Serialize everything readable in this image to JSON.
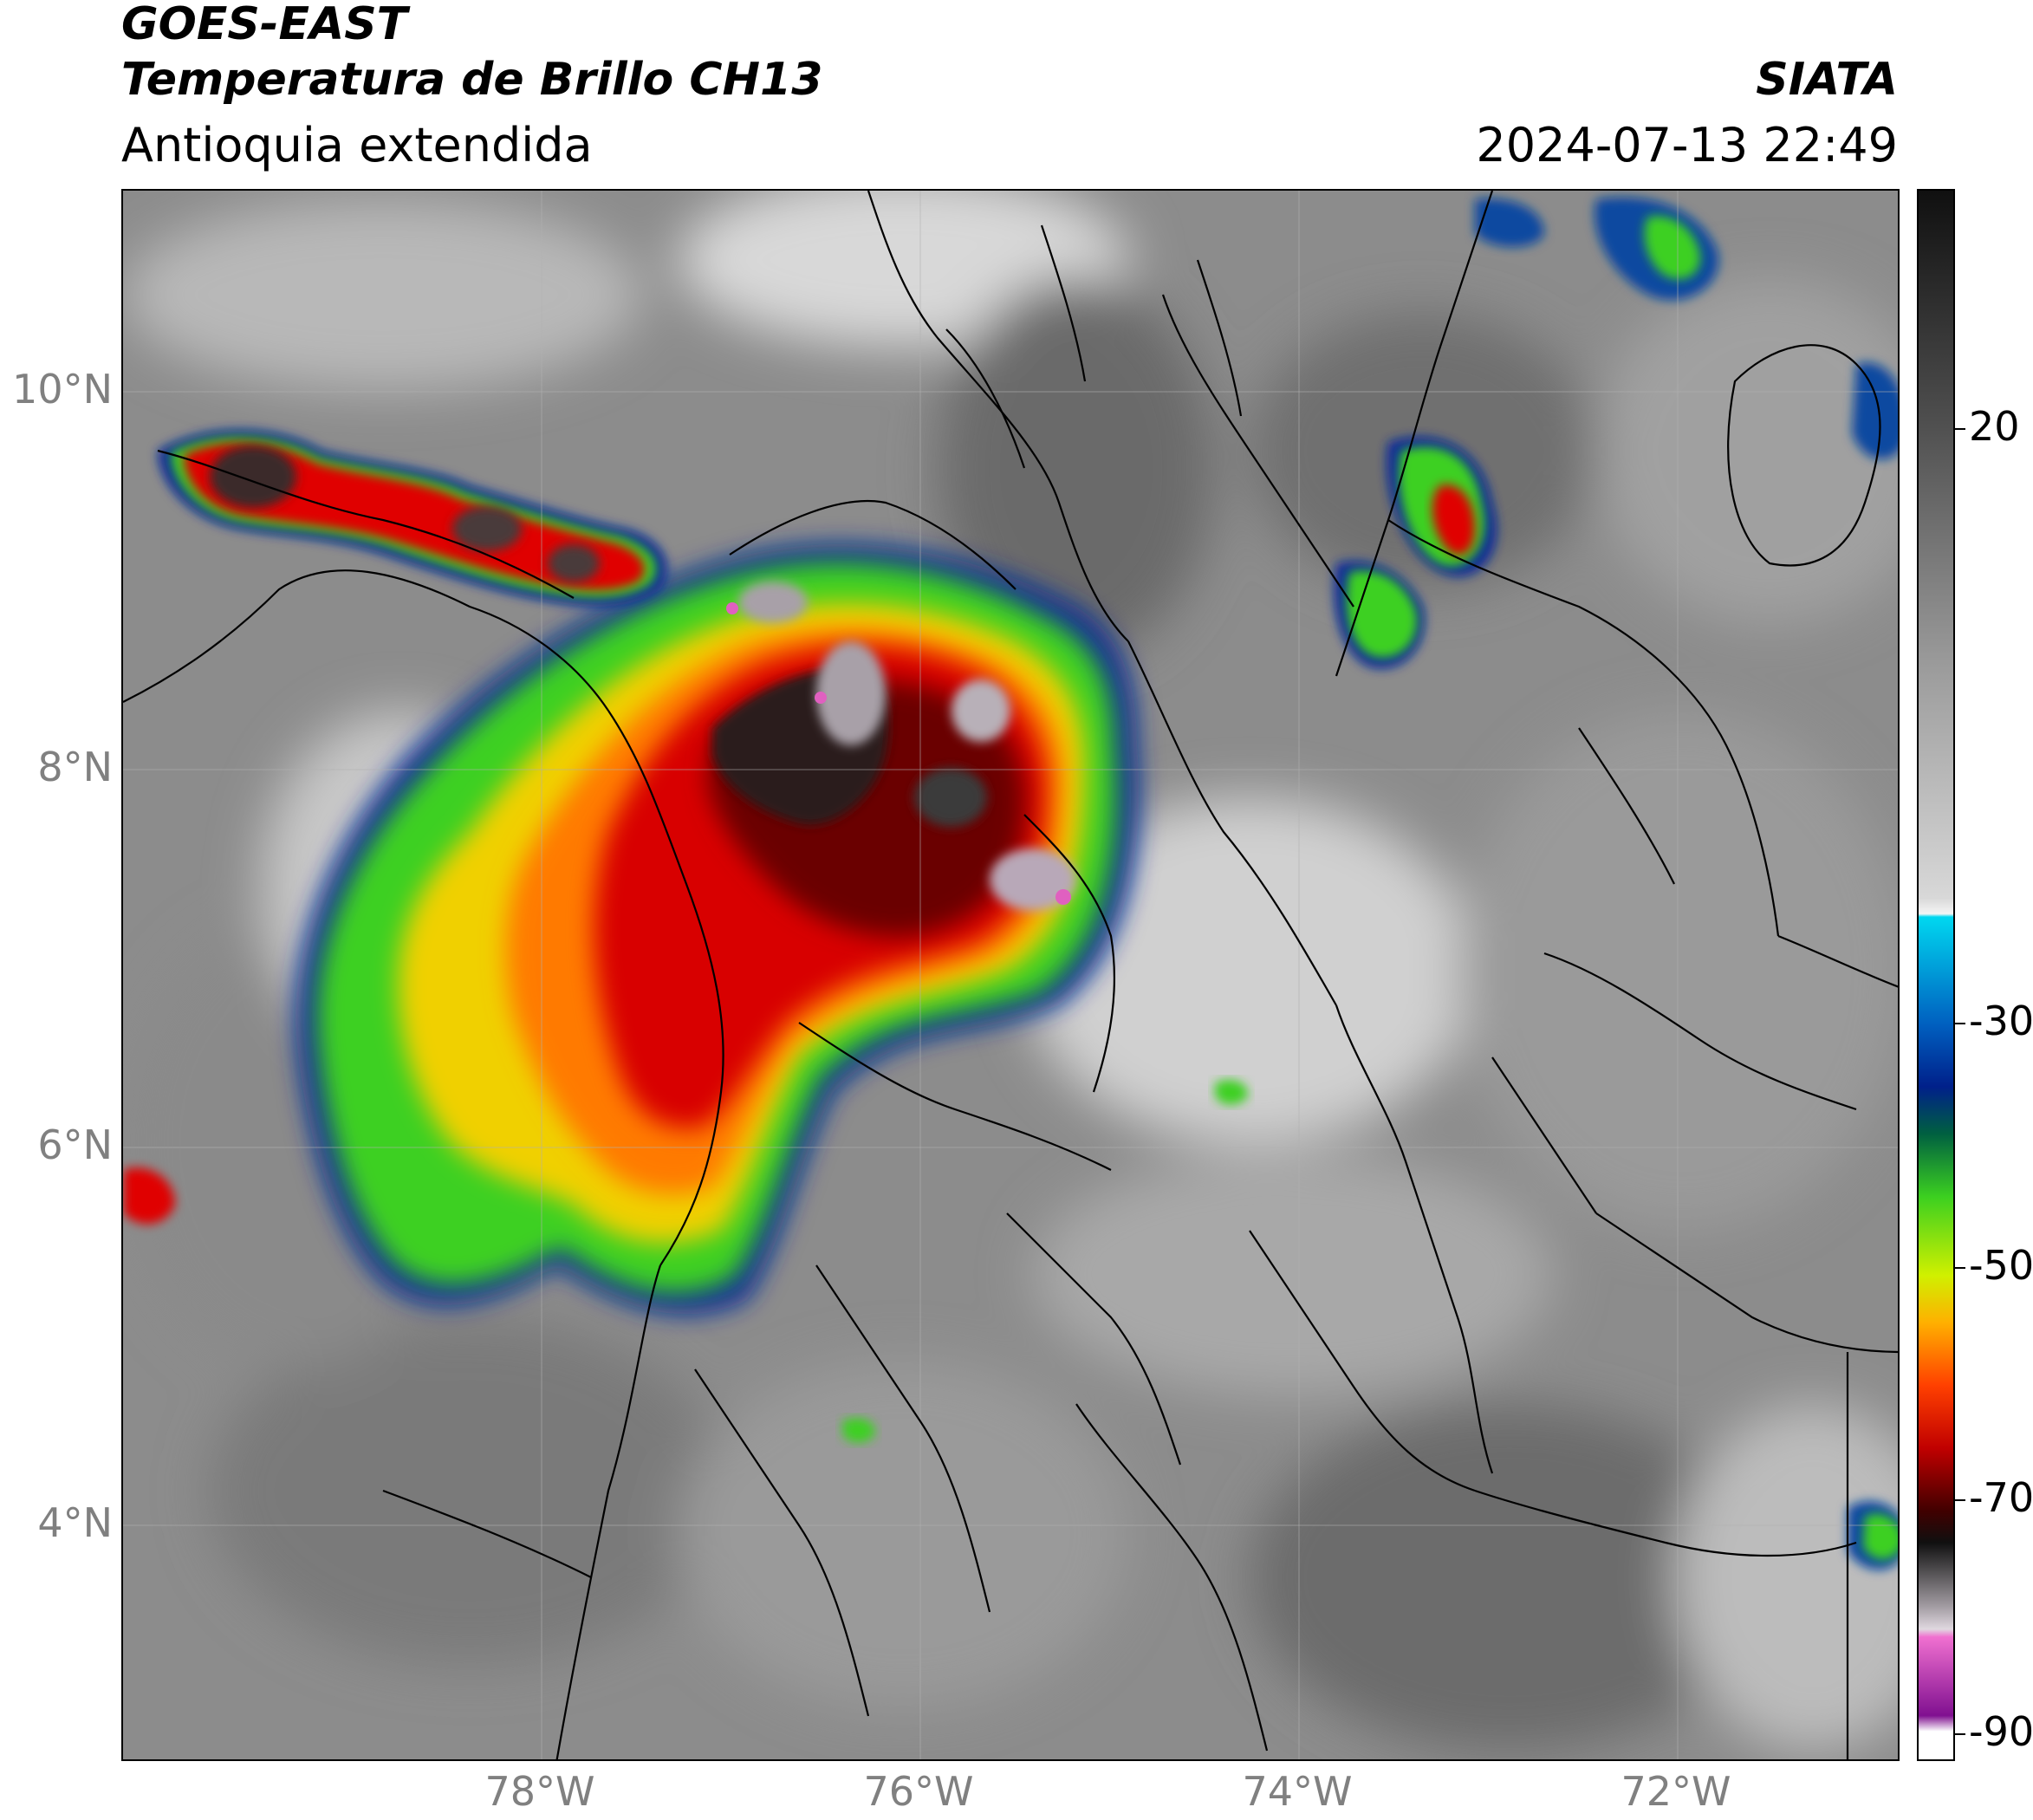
{
  "header": {
    "satellite": "GOES-EAST",
    "product": "Temperatura de Brillo CH13",
    "region": "Antioquia extendida",
    "brand": "SIATA",
    "timestamp": "2024-07-13 22:49"
  },
  "map": {
    "lat_ticks": [
      "10°N",
      "8°N",
      "6°N",
      "4°N"
    ],
    "lon_ticks": [
      "78°W",
      "76°W",
      "74°W",
      "72°W"
    ],
    "extent": {
      "lon_min": -80.1,
      "lon_max": -70.9,
      "lat_min": 2.7,
      "lat_max": 11.0
    }
  },
  "colorbar": {
    "ticks": [
      "20",
      "-30",
      "-50",
      "-70",
      "-90"
    ],
    "tick_values": [
      20,
      -30,
      -50,
      -70,
      -90
    ],
    "range": [
      -95,
      35
    ],
    "colors": {
      "warm_gray": "#5a5a5a",
      "cold_white": "#f2f2f2",
      "cyan": "#00d7f0",
      "blue": "#00208a",
      "green": "#3cd020",
      "yellow": "#f0e600",
      "orange": "#ff8c00",
      "red": "#e00000",
      "dark_red": "#5a0000",
      "black": "#101010",
      "pink": "#e060c0",
      "purple": "#7a1080"
    }
  }
}
